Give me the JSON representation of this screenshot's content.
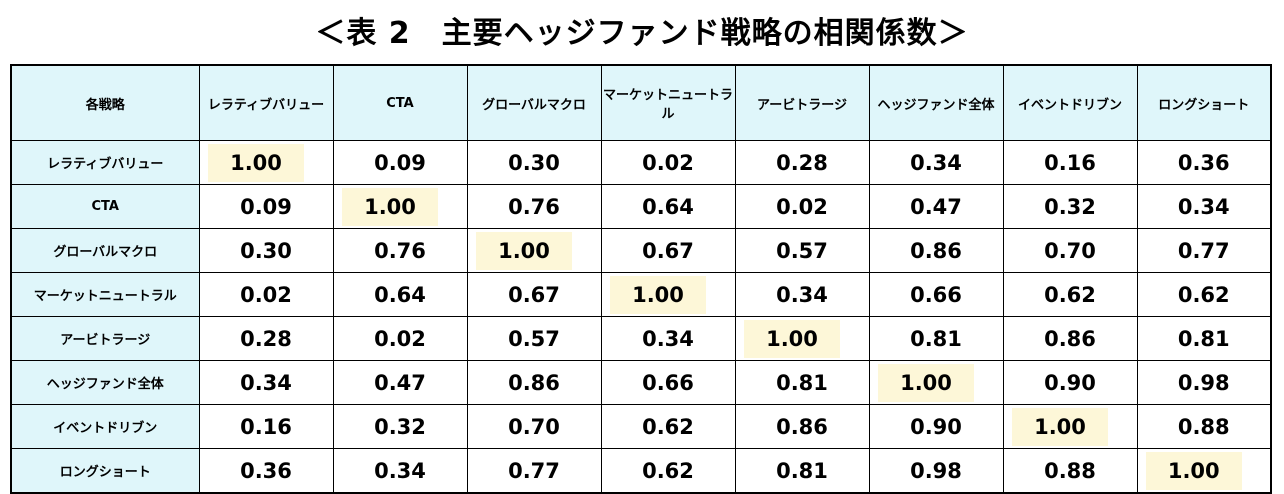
{
  "title": "＜表 2　主要ヘッジファンド戦略の相関係数＞",
  "table": {
    "header": [
      "各戦略",
      "レラティブバリュー",
      "CTA",
      "グローバルマクロ",
      "マーケットニュートラル",
      "アービトラージ",
      "ヘッジファンド全体",
      "イベントドリブン",
      "ロングショート"
    ],
    "rows": [
      [
        "レラティブバリュー",
        "1.00",
        "0.09",
        "0.30",
        "0.02",
        "0.28",
        "0.34",
        "0.16",
        "0.36"
      ],
      [
        "CTA",
        "0.09",
        "1.00",
        "0.76",
        "0.64",
        "0.02",
        "0.47",
        "0.32",
        "0.34"
      ],
      [
        "グローバルマクロ",
        "0.30",
        "0.76",
        "1.00",
        "0.67",
        "0.57",
        "0.86",
        "0.70",
        "0.77"
      ],
      [
        "マーケットニュートラル",
        "0.02",
        "0.64",
        "0.67",
        "1.00",
        "0.34",
        "0.66",
        "0.62",
        "0.62"
      ],
      [
        "アービトラージ",
        "0.28",
        "0.02",
        "0.57",
        "0.34",
        "1.00",
        "0.81",
        "0.86",
        "0.81"
      ],
      [
        "ヘッジファンド全体",
        "0.34",
        "0.47",
        "0.86",
        "0.66",
        "0.81",
        "1.00",
        "0.90",
        "0.98"
      ],
      [
        "イベントドリブン",
        "0.16",
        "0.32",
        "0.70",
        "0.62",
        "0.86",
        "0.90",
        "1.00",
        "0.88"
      ],
      [
        "ロングショート",
        "0.36",
        "0.34",
        "0.77",
        "0.62",
        "0.81",
        "0.98",
        "0.88",
        "1.00"
      ]
    ]
  }
}
